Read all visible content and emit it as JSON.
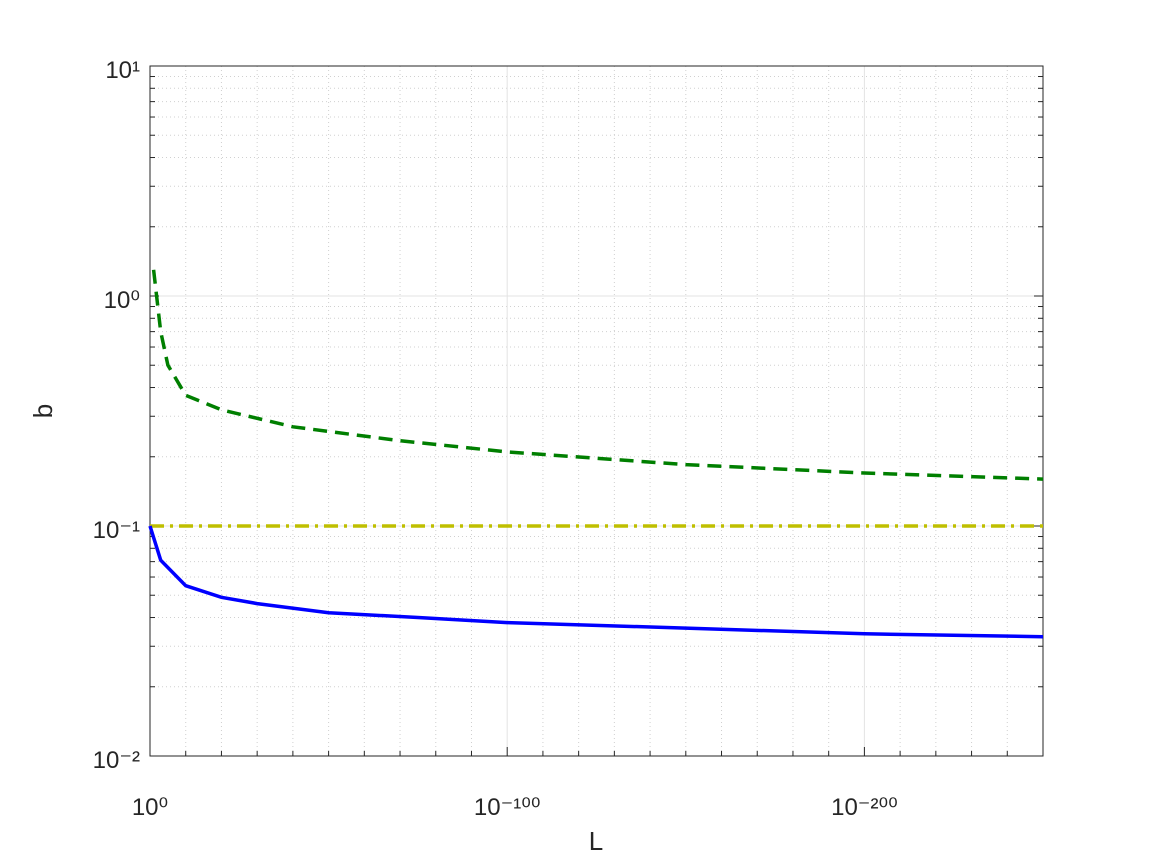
{
  "chart_data": {
    "type": "line",
    "xlabel": "L",
    "ylabel": "b",
    "xscale": "log",
    "yscale": "log",
    "xlim": [
      1,
      1e-250
    ],
    "ylim": [
      0.01,
      10
    ],
    "xticks": [
      {
        "value": 1,
        "label": "10⁰"
      },
      {
        "value": 1e-100,
        "label": "10⁻¹⁰⁰"
      },
      {
        "value": 1e-200,
        "label": "10⁻²⁰⁰"
      }
    ],
    "yticks": [
      {
        "value": 0.01,
        "label": "10⁻²"
      },
      {
        "value": 0.1,
        "label": "10⁻¹"
      },
      {
        "value": 1,
        "label": "10⁰"
      },
      {
        "value": 10,
        "label": "10¹"
      }
    ],
    "xminorticks": [
      1e-10,
      1e-20,
      1e-30,
      1e-40,
      1e-50,
      1e-60,
      1e-70,
      1e-80,
      1e-90,
      1e-110,
      1e-120,
      1e-130,
      1e-140,
      1e-150,
      1e-160,
      1e-170,
      1e-180,
      1e-190,
      1e-210,
      1e-220,
      1e-230,
      1e-240,
      1e-250
    ],
    "yminorticks": [
      0.02,
      0.03,
      0.04,
      0.05,
      0.06,
      0.07,
      0.08,
      0.09,
      0.2,
      0.3,
      0.4,
      0.5,
      0.6,
      0.7,
      0.8,
      0.9,
      2,
      3,
      4,
      5,
      6,
      7,
      8,
      9
    ],
    "grid": true,
    "minor_grid": true,
    "series": [
      {
        "color": "#007f00",
        "line_style": "dashed",
        "x": [
          0.1,
          0.001,
          1e-05,
          1e-10,
          1e-20,
          1e-40,
          1e-70,
          1e-100,
          1e-150,
          1e-200,
          1e-250
        ],
        "values": [
          1.3,
          0.7,
          0.5,
          0.37,
          0.32,
          0.27,
          0.235,
          0.21,
          0.185,
          0.17,
          0.16
        ]
      },
      {
        "color": "#bfbf00",
        "line_style": "dashdot",
        "x": [
          1,
          1e-250
        ],
        "values": [
          0.1,
          0.1
        ]
      },
      {
        "color": "#0000ff",
        "line_style": "solid",
        "x": [
          1,
          0.001,
          1e-10,
          1e-20,
          1e-30,
          1e-50,
          1e-75,
          1e-100,
          1e-150,
          1e-200,
          1e-250
        ],
        "values": [
          0.1,
          0.071,
          0.055,
          0.049,
          0.046,
          0.042,
          0.04,
          0.038,
          0.036,
          0.034,
          0.033
        ]
      }
    ]
  }
}
